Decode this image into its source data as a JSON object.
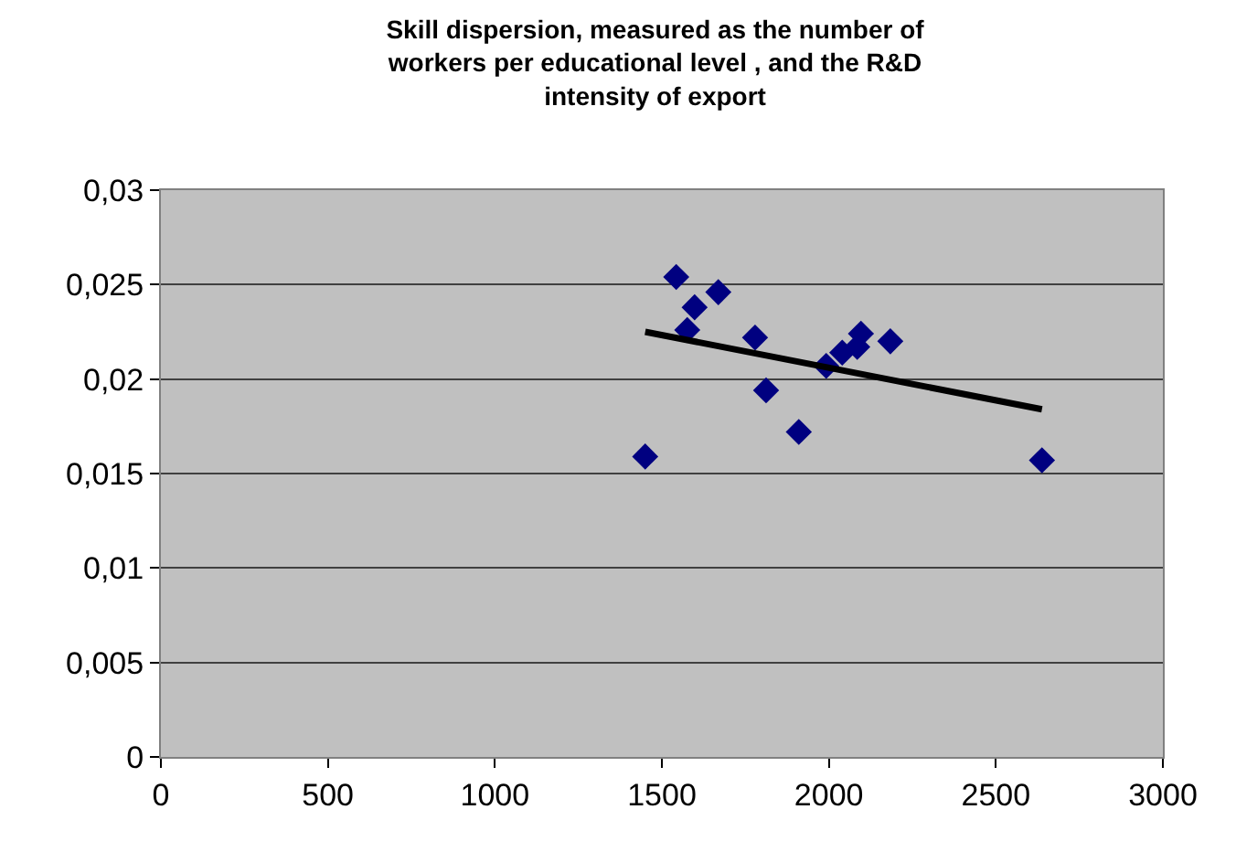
{
  "chart_data": {
    "type": "scatter",
    "title": "Skill dispersion, measured as the number of\nworkers per educational level , and the R&D\nintensity of export",
    "series": [
      {
        "color": "#000080",
        "marker": "diamond",
        "x": [
          1450,
          1543,
          1576,
          1598,
          1669,
          1779,
          1812,
          1910,
          1992,
          2040,
          2085,
          2096,
          2184,
          2638
        ],
        "values": [
          0.0159,
          0.0254,
          0.0226,
          0.0238,
          0.0246,
          0.0222,
          0.0194,
          0.0172,
          0.0207,
          0.0214,
          0.0217,
          0.0224,
          0.022,
          0.0157
        ]
      },
      {
        "type": "line",
        "color": "#000000",
        "marker": "none",
        "x": [
          1450,
          2638
        ],
        "values": [
          0.0225,
          0.0184
        ]
      }
    ],
    "xlim": [
      0,
      3000
    ],
    "xticks": [
      0,
      500,
      1000,
      1500,
      2000,
      2500,
      3000
    ],
    "ylim": [
      0,
      0.03
    ],
    "yticks": [
      {
        "value": 0,
        "label": "0"
      },
      {
        "value": 0.005,
        "label": "0,005"
      },
      {
        "value": 0.01,
        "label": "0,01"
      },
      {
        "value": 0.015,
        "label": "0,015"
      },
      {
        "value": 0.02,
        "label": "0,02"
      },
      {
        "value": 0.025,
        "label": "0,025"
      },
      {
        "value": 0.03,
        "label": "0,03"
      }
    ],
    "grid": "y"
  }
}
